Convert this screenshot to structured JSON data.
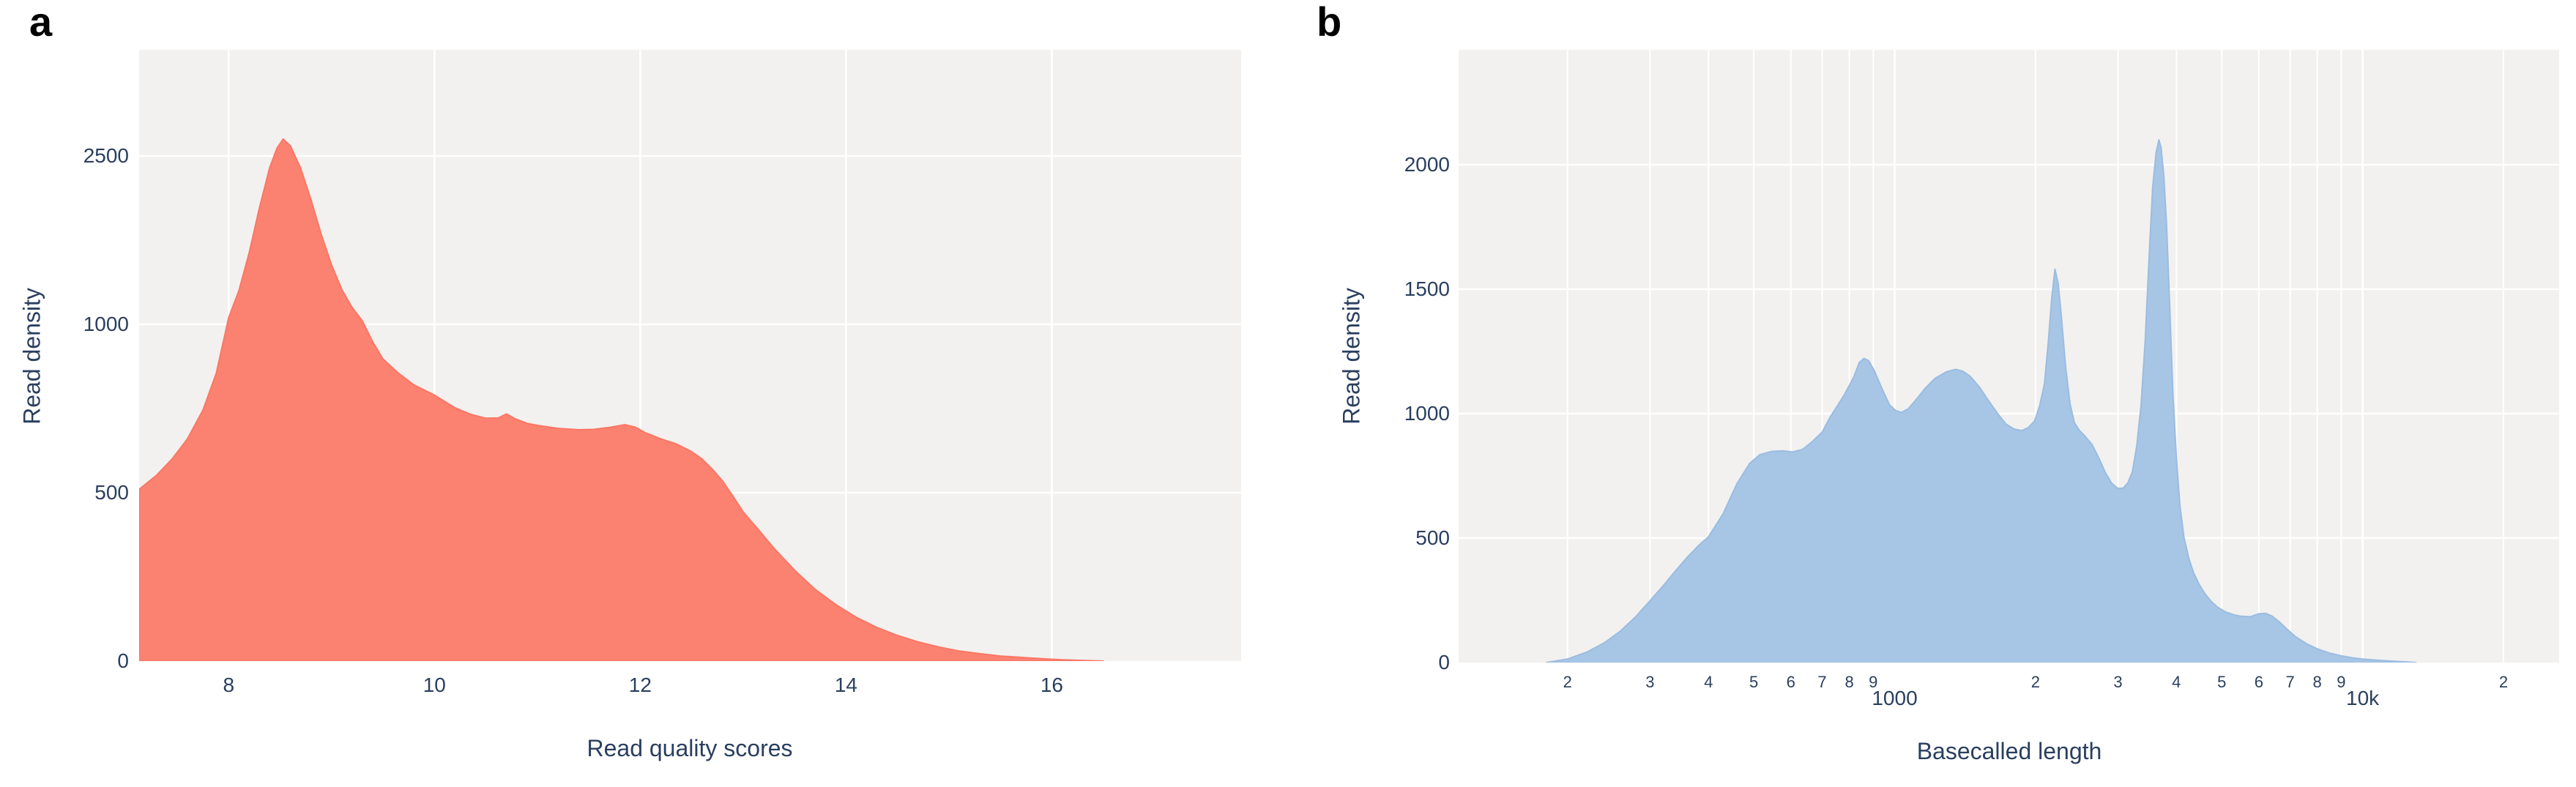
{
  "figure": {
    "description": "Two-panel density figure: read quality score distribution and basecalled length distribution",
    "background": "#ffffff",
    "text_color": "#2a3f5f",
    "plot_background": "#f2f1ef",
    "grid_color": "#ffffff"
  },
  "chart_data": [
    {
      "panel_label": "a",
      "type": "area",
      "title": "",
      "xlabel": "Read quality scores",
      "ylabel": "Read density",
      "legend": "none",
      "grid": true,
      "fill_color": "#fb8171",
      "line_color": "#fa7765",
      "plot_bg": "#f2f1ef",
      "grid_color": "#ffffff",
      "text_color": "#2a3f5f",
      "x_scale": "linear",
      "x_domain": [
        7.13,
        17.84
      ],
      "x_ticks": [
        {
          "v": 8,
          "label": "8",
          "major": true
        },
        {
          "v": 10,
          "label": "10",
          "major": true
        },
        {
          "v": 12,
          "label": "12",
          "major": true
        },
        {
          "v": 14,
          "label": "14",
          "major": true
        },
        {
          "v": 16,
          "label": "16",
          "major": true
        }
      ],
      "y_ticks": [
        {
          "v": 0,
          "label": "0"
        },
        {
          "v": 500,
          "label": "500"
        },
        {
          "v": 1000,
          "label": "1000"
        },
        {
          "v": 2500,
          "label": "2500"
        }
      ],
      "y_axis_note": "tick labels 0/500/1000/2500 are rendered at equal pixel spacing; peak slightly exceeds 2500 line",
      "points": [
        [
          7.13,
          510
        ],
        [
          7.3,
          552
        ],
        [
          7.45,
          600
        ],
        [
          7.6,
          660
        ],
        [
          7.75,
          745
        ],
        [
          7.88,
          855
        ],
        [
          8.0,
          1060
        ],
        [
          8.1,
          1300
        ],
        [
          8.2,
          1640
        ],
        [
          8.3,
          2040
        ],
        [
          8.4,
          2400
        ],
        [
          8.47,
          2570
        ],
        [
          8.53,
          2650
        ],
        [
          8.6,
          2590
        ],
        [
          8.7,
          2390
        ],
        [
          8.8,
          2110
        ],
        [
          8.9,
          1800
        ],
        [
          9.0,
          1530
        ],
        [
          9.1,
          1310
        ],
        [
          9.2,
          1150
        ],
        [
          9.3,
          1030
        ],
        [
          9.4,
          948
        ],
        [
          9.5,
          897
        ],
        [
          9.65,
          855
        ],
        [
          9.8,
          820
        ],
        [
          10.0,
          790
        ],
        [
          10.2,
          752
        ],
        [
          10.35,
          733
        ],
        [
          10.5,
          721
        ],
        [
          10.62,
          722
        ],
        [
          10.7,
          734
        ],
        [
          10.78,
          720
        ],
        [
          10.9,
          706
        ],
        [
          11.0,
          700
        ],
        [
          11.2,
          691
        ],
        [
          11.4,
          687
        ],
        [
          11.55,
          688
        ],
        [
          11.7,
          694
        ],
        [
          11.85,
          702
        ],
        [
          11.95,
          695
        ],
        [
          12.05,
          678
        ],
        [
          12.2,
          660
        ],
        [
          12.35,
          645
        ],
        [
          12.5,
          622
        ],
        [
          12.6,
          600
        ],
        [
          12.7,
          570
        ],
        [
          12.8,
          535
        ],
        [
          12.9,
          490
        ],
        [
          13.0,
          443
        ],
        [
          13.15,
          390
        ],
        [
          13.3,
          335
        ],
        [
          13.5,
          270
        ],
        [
          13.7,
          213
        ],
        [
          13.9,
          168
        ],
        [
          14.1,
          130
        ],
        [
          14.3,
          100
        ],
        [
          14.5,
          76
        ],
        [
          14.7,
          57
        ],
        [
          14.9,
          42
        ],
        [
          15.1,
          30
        ],
        [
          15.3,
          22
        ],
        [
          15.5,
          15
        ],
        [
          15.7,
          11
        ],
        [
          15.9,
          7
        ],
        [
          16.1,
          4
        ],
        [
          16.3,
          2
        ],
        [
          16.5,
          0
        ]
      ]
    },
    {
      "panel_label": "b",
      "type": "area",
      "title": "",
      "xlabel": "Basecalled length",
      "ylabel": "Read density",
      "legend": "none",
      "grid": true,
      "fill_color": "#a7c6e6",
      "line_color": "#9bbce0",
      "plot_bg": "#f2f1ef",
      "grid_color": "#ffffff",
      "text_color": "#2a3f5f",
      "x_scale": "log",
      "x_domain": [
        117,
        26300
      ],
      "x_ticks": [
        {
          "v": 200,
          "label": "2",
          "major": false
        },
        {
          "v": 300,
          "label": "3",
          "major": false
        },
        {
          "v": 400,
          "label": "4",
          "major": false
        },
        {
          "v": 500,
          "label": "5",
          "major": false
        },
        {
          "v": 600,
          "label": "6",
          "major": false
        },
        {
          "v": 700,
          "label": "7",
          "major": false
        },
        {
          "v": 800,
          "label": "8",
          "major": false
        },
        {
          "v": 900,
          "label": "9",
          "major": false
        },
        {
          "v": 1000,
          "label": "1000",
          "major": true
        },
        {
          "v": 2000,
          "label": "2",
          "major": false
        },
        {
          "v": 3000,
          "label": "3",
          "major": false
        },
        {
          "v": 4000,
          "label": "4",
          "major": false
        },
        {
          "v": 5000,
          "label": "5",
          "major": false
        },
        {
          "v": 6000,
          "label": "6",
          "major": false
        },
        {
          "v": 7000,
          "label": "7",
          "major": false
        },
        {
          "v": 8000,
          "label": "8",
          "major": false
        },
        {
          "v": 9000,
          "label": "9",
          "major": false
        },
        {
          "v": 10000,
          "label": "10k",
          "major": true
        },
        {
          "v": 20000,
          "label": "2",
          "major": false
        }
      ],
      "y_ticks": [
        {
          "v": 0,
          "label": "0"
        },
        {
          "v": 500,
          "label": "500"
        },
        {
          "v": 1000,
          "label": "1000"
        },
        {
          "v": 1500,
          "label": "1500"
        },
        {
          "v": 2000,
          "label": "2000"
        }
      ],
      "y_axis_note": "linear axis; narrow spike at ~3.7 kb reaches ~2100",
      "points": [
        [
          180,
          0
        ],
        [
          200,
          14
        ],
        [
          220,
          42
        ],
        [
          240,
          80
        ],
        [
          260,
          128
        ],
        [
          280,
          185
        ],
        [
          300,
          248
        ],
        [
          320,
          308
        ],
        [
          340,
          368
        ],
        [
          360,
          422
        ],
        [
          380,
          468
        ],
        [
          400,
          505
        ],
        [
          430,
          598
        ],
        [
          460,
          718
        ],
        [
          490,
          800
        ],
        [
          515,
          835
        ],
        [
          545,
          848
        ],
        [
          575,
          851
        ],
        [
          605,
          846
        ],
        [
          635,
          856
        ],
        [
          665,
          886
        ],
        [
          700,
          926
        ],
        [
          730,
          990
        ],
        [
          755,
          1032
        ],
        [
          780,
          1075
        ],
        [
          818,
          1148
        ],
        [
          840,
          1205
        ],
        [
          860,
          1222
        ],
        [
          880,
          1213
        ],
        [
          905,
          1172
        ],
        [
          940,
          1100
        ],
        [
          975,
          1035
        ],
        [
          1005,
          1012
        ],
        [
          1035,
          1005
        ],
        [
          1070,
          1020
        ],
        [
          1110,
          1055
        ],
        [
          1160,
          1100
        ],
        [
          1220,
          1142
        ],
        [
          1290,
          1168
        ],
        [
          1350,
          1178
        ],
        [
          1400,
          1170
        ],
        [
          1450,
          1150
        ],
        [
          1520,
          1105
        ],
        [
          1590,
          1050
        ],
        [
          1660,
          1000
        ],
        [
          1730,
          958
        ],
        [
          1800,
          938
        ],
        [
          1870,
          932
        ],
        [
          1930,
          944
        ],
        [
          1990,
          970
        ],
        [
          2040,
          1030
        ],
        [
          2090,
          1120
        ],
        [
          2130,
          1290
        ],
        [
          2165,
          1460
        ],
        [
          2200,
          1580
        ],
        [
          2235,
          1525
        ],
        [
          2270,
          1395
        ],
        [
          2320,
          1185
        ],
        [
          2370,
          1040
        ],
        [
          2420,
          965
        ],
        [
          2480,
          933
        ],
        [
          2550,
          910
        ],
        [
          2640,
          876
        ],
        [
          2730,
          822
        ],
        [
          2820,
          763
        ],
        [
          2910,
          720
        ],
        [
          3000,
          699
        ],
        [
          3080,
          701
        ],
        [
          3150,
          722
        ],
        [
          3220,
          766
        ],
        [
          3290,
          870
        ],
        [
          3360,
          1030
        ],
        [
          3430,
          1290
        ],
        [
          3500,
          1640
        ],
        [
          3560,
          1910
        ],
        [
          3620,
          2050
        ],
        [
          3670,
          2100
        ],
        [
          3710,
          2068
        ],
        [
          3760,
          1955
        ],
        [
          3810,
          1760
        ],
        [
          3870,
          1435
        ],
        [
          3930,
          1085
        ],
        [
          4000,
          820
        ],
        [
          4070,
          630
        ],
        [
          4150,
          505
        ],
        [
          4250,
          420
        ],
        [
          4350,
          362
        ],
        [
          4470,
          315
        ],
        [
          4600,
          277
        ],
        [
          4750,
          245
        ],
        [
          4900,
          222
        ],
        [
          5100,
          203
        ],
        [
          5300,
          192
        ],
        [
          5500,
          186
        ],
        [
          5750,
          184
        ],
        [
          6000,
          196
        ],
        [
          6200,
          198
        ],
        [
          6400,
          187
        ],
        [
          6650,
          162
        ],
        [
          6900,
          133
        ],
        [
          7200,
          103
        ],
        [
          7600,
          75
        ],
        [
          8000,
          55
        ],
        [
          8500,
          38
        ],
        [
          9000,
          27
        ],
        [
          9500,
          19
        ],
        [
          10000,
          14
        ],
        [
          10800,
          9
        ],
        [
          11500,
          6
        ],
        [
          12300,
          3
        ],
        [
          13000,
          0
        ]
      ]
    }
  ]
}
